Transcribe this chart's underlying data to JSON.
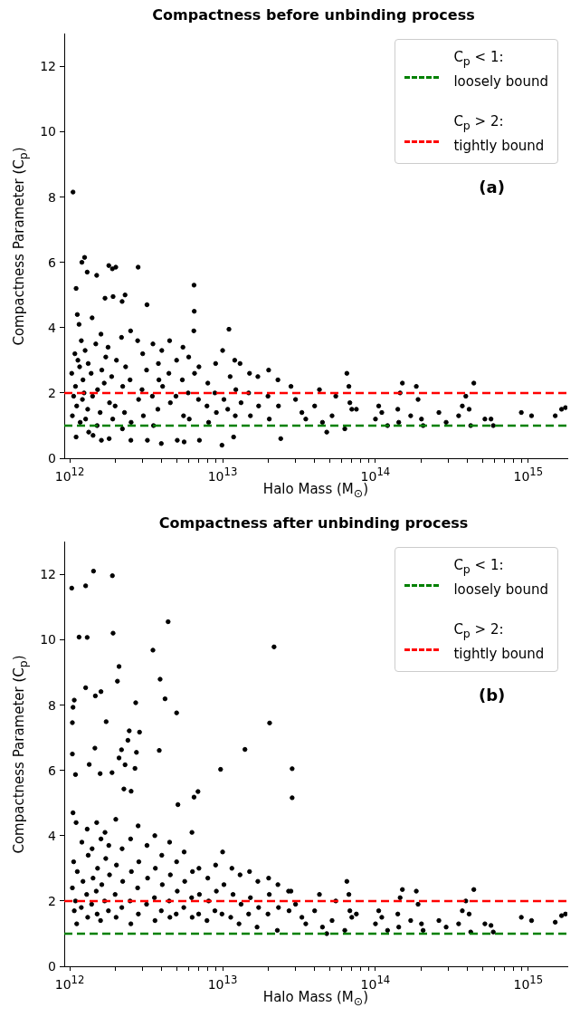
{
  "chart_data": [
    {
      "type": "scatter",
      "title": "Compactness before unbinding process",
      "xlabel": "Halo Mass (M$_{⊙}$)",
      "ylabel": "Compactness Parameter (C$_{p}$)",
      "color": "#000000",
      "marker": "circle",
      "log": "x",
      "legend": "top right",
      "xlim": [
        920000000000.0,
        1800000000000000.0
      ],
      "ylim": [
        0,
        13
      ],
      "xticks": [
        {
          "value": 1000000000000.0,
          "label": "10$^{12}$"
        },
        {
          "value": 2000000000000.0,
          "label": null
        },
        {
          "value": 3000000000000.0,
          "label": null
        },
        {
          "value": 4000000000000.0,
          "label": null
        },
        {
          "value": 5000000000000.0,
          "label": null
        },
        {
          "value": 6000000000000.0,
          "label": null
        },
        {
          "value": 7000000000000.0,
          "label": null
        },
        {
          "value": 8000000000000.0,
          "label": null
        },
        {
          "value": 9000000000000.0,
          "label": null
        },
        {
          "value": 10000000000000.0,
          "label": "10$^{13}$"
        },
        {
          "value": 20000000000000.0,
          "label": null
        },
        {
          "value": 30000000000000.0,
          "label": null
        },
        {
          "value": 40000000000000.0,
          "label": null
        },
        {
          "value": 50000000000000.0,
          "label": null
        },
        {
          "value": 60000000000000.0,
          "label": null
        },
        {
          "value": 70000000000000.0,
          "label": null
        },
        {
          "value": 80000000000000.0,
          "label": null
        },
        {
          "value": 90000000000000.0,
          "label": null
        },
        {
          "value": 100000000000000.0,
          "label": "10$^{14}$"
        },
        {
          "value": 200000000000000.0,
          "label": null
        },
        {
          "value": 300000000000000.0,
          "label": null
        },
        {
          "value": 400000000000000.0,
          "label": null
        },
        {
          "value": 500000000000000.0,
          "label": null
        },
        {
          "value": 600000000000000.0,
          "label": null
        },
        {
          "value": 700000000000000.0,
          "label": null
        },
        {
          "value": 800000000000000.0,
          "label": null
        },
        {
          "value": 900000000000000.0,
          "label": null
        },
        {
          "value": 1000000000000000.0,
          "label": "10$^{15}$"
        }
      ],
      "yticks": [
        0,
        2,
        4,
        6,
        8,
        10,
        12
      ],
      "ref_lines": [
        {
          "axis": "y",
          "value": 1,
          "label": "C$_{p}$ < 1:\nloosely bound",
          "color": "#008000",
          "line_style": "dashed"
        },
        {
          "axis": "y",
          "value": 2,
          "label": "C$_{p}$ > 2:\ntightly bound",
          "color": "#ff0000",
          "line_style": "dashed"
        }
      ],
      "annotations": [
        "(a)"
      ],
      "x": [
        1050000000000.0,
        1030000000000.0,
        1060000000000.0,
        1040000000000.0,
        1080000000000.0,
        1100000000000.0,
        1120000000000.0,
        1090000000000.0,
        1110000000000.0,
        1100000000000.0,
        1130000000000.0,
        1150000000000.0,
        1160000000000.0,
        1170000000000.0,
        1200000000000.0,
        1190000000000.0,
        1220000000000.0,
        1210000000000.0,
        1250000000000.0,
        1260000000000.0,
        1240000000000.0,
        1270000000000.0,
        1300000000000.0,
        1320000000000.0,
        1310000000000.0,
        1330000000000.0,
        1400000000000.0,
        1380000000000.0,
        1420000000000.0,
        1410000000000.0,
        1500000000000.0,
        1480000000000.0,
        1520000000000.0,
        1510000000000.0,
        1600000000000.0,
        1620000000000.0,
        1580000000000.0,
        1610000000000.0,
        1700000000000.0,
        1720000000000.0,
        1680000000000.0,
        1800000000000.0,
        1780000000000.0,
        1820000000000.0,
        1810000000000.0,
        1900000000000.0,
        1920000000000.0,
        1880000000000.0,
        1910000000000.0,
        2000000000000.0,
        2020000000000.0,
        1980000000000.0,
        2200000000000.0,
        2180000000000.0,
        2220000000000.0,
        2210000000000.0,
        2300000000000.0,
        2320000000000.0,
        2280000000000.0,
        2500000000000.0,
        2480000000000.0,
        2520000000000.0,
        2510000000000.0,
        2800000000000.0,
        2780000000000.0,
        2820000000000.0,
        3000000000000.0,
        2970000000000.0,
        3030000000000.0,
        3200000000000.0,
        3180000000000.0,
        3220000000000.0,
        3500000000000.0,
        3470000000000.0,
        3530000000000.0,
        3800000000000.0,
        3770000000000.0,
        3830000000000.0,
        4000000000000.0,
        4050000000000.0,
        3970000000000.0,
        4500000000000.0,
        4450000000000.0,
        4550000000000.0,
        5000000000000.0,
        4950000000000.0,
        5050000000000.0,
        5500000000000.0,
        5450000000000.0,
        5550000000000.0,
        5600000000000.0,
        6000000000000.0,
        5950000000000.0,
        6050000000000.0,
        6500000000000.0,
        6520000000000.0,
        6480000000000.0,
        6550000000000.0,
        7000000000000.0,
        6950000000000.0,
        7050000000000.0,
        8000000000000.0,
        7900000000000.0,
        8100000000000.0,
        9000000000000.0,
        8900000000000.0,
        9100000000000.0,
        10000000000000.0,
        10200000000000.0,
        9900000000000.0,
        11000000000000.0,
        11200000000000.0,
        10800000000000.0,
        12000000000000.0,
        12200000000000.0,
        11800000000000.0,
        12100000000000.0,
        13000000000000.0,
        13200000000000.0,
        15000000000000.0,
        14800000000000.0,
        15200000000000.0,
        17000000000000.0,
        17200000000000.0,
        20000000000000.0,
        19800000000000.0,
        20200000000000.0,
        23000000000000.0,
        23200000000000.0,
        24000000000000.0,
        28000000000000.0,
        30000000000000.0,
        33000000000000.0,
        35000000000000.0,
        40000000000000.0,
        43000000000000.0,
        45000000000000.0,
        48000000000000.0,
        52000000000000.0,
        55000000000000.0,
        65000000000000.0,
        67000000000000.0,
        68000000000000.0,
        70000000000000.0,
        63000000000000.0,
        75000000000000.0,
        100000000000000.0,
        105000000000000.0,
        110000000000000.0,
        120000000000000.0,
        140000000000000.0,
        145000000000000.0,
        150000000000000.0,
        142000000000000.0,
        170000000000000.0,
        185000000000000.0,
        190000000000000.0,
        200000000000000.0,
        205000000000000.0,
        260000000000000.0,
        290000000000000.0,
        350000000000000.0,
        370000000000000.0,
        390000000000000.0,
        410000000000000.0,
        420000000000000.0,
        440000000000000.0,
        520000000000000.0,
        570000000000000.0,
        590000000000000.0,
        900000000000000.0,
        1050000000000000.0,
        1500000000000000.0,
        1650000000000000.0,
        1750000000000000.0
      ],
      "values": [
        8.15,
        2.6,
        1.9,
        1.3,
        3.2,
        5.2,
        4.4,
        2.2,
        1.6,
        0.65,
        3.0,
        4.1,
        2.8,
        1.1,
        6.0,
        3.6,
        2.4,
        1.8,
        6.15,
        3.3,
        2.0,
        1.2,
        5.7,
        2.9,
        1.5,
        0.8,
        4.3,
        2.6,
        0.7,
        1.9,
        5.6,
        3.5,
        2.1,
        1.0,
        3.8,
        2.7,
        1.4,
        0.55,
        4.9,
        3.1,
        2.3,
        5.9,
        3.4,
        1.7,
        0.6,
        5.8,
        4.95,
        2.5,
        1.2,
        5.85,
        3.0,
        1.6,
        4.8,
        3.7,
        2.2,
        0.9,
        5.0,
        2.8,
        1.4,
        3.9,
        2.4,
        1.1,
        0.55,
        5.85,
        3.6,
        1.8,
        3.2,
        2.1,
        1.3,
        4.7,
        2.7,
        0.55,
        3.5,
        1.9,
        1.0,
        2.9,
        1.5,
        2.4,
        3.3,
        2.2,
        0.45,
        3.6,
        2.6,
        1.7,
        3.0,
        1.9,
        0.55,
        3.4,
        2.4,
        1.3,
        0.5,
        3.1,
        2.0,
        1.2,
        5.3,
        4.5,
        3.9,
        2.6,
        2.8,
        1.8,
        0.55,
        2.3,
        1.6,
        1.1,
        2.9,
        2.0,
        1.4,
        3.3,
        1.8,
        0.4,
        3.95,
        2.5,
        1.5,
        3.0,
        2.1,
        0.65,
        1.3,
        2.9,
        1.7,
        2.6,
        2.0,
        1.3,
        2.5,
        1.6,
        2.7,
        1.9,
        1.2,
        2.4,
        1.6,
        0.6,
        2.2,
        1.8,
        1.4,
        1.2,
        1.6,
        2.1,
        1.1,
        0.8,
        1.3,
        1.9,
        2.6,
        2.2,
        1.7,
        1.5,
        0.9,
        1.5,
        1.2,
        1.6,
        1.4,
        1.0,
        1.5,
        2.0,
        2.3,
        1.1,
        1.3,
        2.2,
        1.8,
        1.2,
        1.0,
        1.4,
        1.1,
        1.3,
        1.6,
        1.9,
        1.5,
        1.0,
        2.3,
        1.2,
        1.2,
        1.0,
        1.4,
        1.3,
        1.3,
        1.5,
        1.55
      ]
    },
    {
      "type": "scatter",
      "title": "Compactness after unbinding process",
      "xlabel": "Halo Mass (M$_{⊙}$)",
      "ylabel": "Compactness Parameter (C$_{p}$)",
      "color": "#000000",
      "marker": "circle",
      "log": "x",
      "legend": "top right",
      "xlim": [
        920000000000.0,
        1800000000000000.0
      ],
      "ylim": [
        0,
        13
      ],
      "xticks": [
        {
          "value": 1000000000000.0,
          "label": "10$^{12}$"
        },
        {
          "value": 2000000000000.0,
          "label": null
        },
        {
          "value": 3000000000000.0,
          "label": null
        },
        {
          "value": 4000000000000.0,
          "label": null
        },
        {
          "value": 5000000000000.0,
          "label": null
        },
        {
          "value": 6000000000000.0,
          "label": null
        },
        {
          "value": 7000000000000.0,
          "label": null
        },
        {
          "value": 8000000000000.0,
          "label": null
        },
        {
          "value": 9000000000000.0,
          "label": null
        },
        {
          "value": 10000000000000.0,
          "label": "10$^{13}$"
        },
        {
          "value": 20000000000000.0,
          "label": null
        },
        {
          "value": 30000000000000.0,
          "label": null
        },
        {
          "value": 40000000000000.0,
          "label": null
        },
        {
          "value": 50000000000000.0,
          "label": null
        },
        {
          "value": 60000000000000.0,
          "label": null
        },
        {
          "value": 70000000000000.0,
          "label": null
        },
        {
          "value": 80000000000000.0,
          "label": null
        },
        {
          "value": 90000000000000.0,
          "label": null
        },
        {
          "value": 100000000000000.0,
          "label": "10$^{14}$"
        },
        {
          "value": 200000000000000.0,
          "label": null
        },
        {
          "value": 300000000000000.0,
          "label": null
        },
        {
          "value": 400000000000000.0,
          "label": null
        },
        {
          "value": 500000000000000.0,
          "label": null
        },
        {
          "value": 600000000000000.0,
          "label": null
        },
        {
          "value": 700000000000000.0,
          "label": null
        },
        {
          "value": 800000000000000.0,
          "label": null
        },
        {
          "value": 900000000000000.0,
          "label": null
        },
        {
          "value": 1000000000000000.0,
          "label": "10$^{15}$"
        }
      ],
      "yticks": [
        0,
        2,
        4,
        6,
        8,
        10,
        12
      ],
      "ref_lines": [
        {
          "axis": "y",
          "value": 1,
          "label": "C$_{p}$ < 1:\nloosely bound",
          "color": "#008000",
          "line_style": "dashed"
        },
        {
          "axis": "y",
          "value": 2,
          "label": "C$_{p}$ > 2:\ntightly bound",
          "color": "#ff0000",
          "line_style": "dashed"
        }
      ],
      "annotations": [
        "(b)"
      ],
      "x": [
        1030000000000.0,
        1270000000000.0,
        1430000000000.0,
        1900000000000.0,
        1150000000000.0,
        1300000000000.0,
        1920000000000.0,
        4400000000000.0,
        3500000000000.0,
        21700000000000.0,
        2100000000000.0,
        2050000000000.0,
        1270000000000.0,
        1070000000000.0,
        1050000000000.0,
        1470000000000.0,
        1600000000000.0,
        3900000000000.0,
        4200000000000.0,
        2700000000000.0,
        5000000000000.0,
        20300000000000.0,
        1040000000000.0,
        1730000000000.0,
        2450000000000.0,
        2860000000000.0,
        2400000000000.0,
        2180000000000.0,
        2730000000000.0,
        3850000000000.0,
        14000000000000.0,
        1040000000000.0,
        1460000000000.0,
        2100000000000.0,
        2300000000000.0,
        2670000000000.0,
        9700000000000.0,
        28500000000000.0,
        28500000000000.0,
        1090000000000.0,
        1340000000000.0,
        1580000000000.0,
        1890000000000.0,
        2260000000000.0,
        2520000000000.0,
        6900000000000.0,
        6500000000000.0,
        5100000000000.0,
        1050000000000.0,
        1060000000000.0,
        1040000000000.0,
        1070000000000.0,
        1100000000000.0,
        1120000000000.0,
        1090000000000.0,
        1110000000000.0,
        1200000000000.0,
        1220000000000.0,
        1190000000000.0,
        1300000000000.0,
        1320000000000.0,
        1290000000000.0,
        1310000000000.0,
        1400000000000.0,
        1420000000000.0,
        1390000000000.0,
        1500000000000.0,
        1520000000000.0,
        1490000000000.0,
        1510000000000.0,
        1600000000000.0,
        1620000000000.0,
        1590000000000.0,
        1700000000000.0,
        1720000000000.0,
        1690000000000.0,
        1800000000000.0,
        1820000000000.0,
        1790000000000.0,
        2000000000000.0,
        2020000000000.0,
        1980000000000.0,
        2010000000000.0,
        2200000000000.0,
        2220000000000.0,
        2190000000000.0,
        2500000000000.0,
        2530000000000.0,
        2480000000000.0,
        2510000000000.0,
        2800000000000.0,
        2830000000000.0,
        2780000000000.0,
        2810000000000.0,
        3200000000000.0,
        3230000000000.0,
        3180000000000.0,
        3600000000000.0,
        3630000000000.0,
        3580000000000.0,
        3610000000000.0,
        4000000000000.0,
        4030000000000.0,
        3970000000000.0,
        4500000000000.0,
        4550000000000.0,
        4470000000000.0,
        4520000000000.0,
        5000000000000.0,
        5050000000000.0,
        4970000000000.0,
        5600000000000.0,
        5650000000000.0,
        5570000000000.0,
        6300000000000.0,
        6350000000000.0,
        6270000000000.0,
        6320000000000.0,
        7000000000000.0,
        7050000000000.0,
        6970000000000.0,
        8000000000000.0,
        8100000000000.0,
        7900000000000.0,
        9000000000000.0,
        9100000000000.0,
        8900000000000.0,
        10000000000000.0,
        10200000000000.0,
        9900000000000.0,
        11500000000000.0,
        11700000000000.0,
        11300000000000.0,
        13000000000000.0,
        13200000000000.0,
        12800000000000.0,
        15000000000000.0,
        15200000000000.0,
        14800000000000.0,
        17000000000000.0,
        17200000000000.0,
        16800000000000.0,
        20000000000000.0,
        20200000000000.0,
        19800000000000.0,
        23000000000000.0,
        23200000000000.0,
        22800000000000.0,
        27000000000000.0,
        27200000000000.0,
        28000000000000.0,
        30000000000000.0,
        33000000000000.0,
        35000000000000.0,
        40000000000000.0,
        43000000000000.0,
        45000000000000.0,
        48000000000000.0,
        52000000000000.0,
        55000000000000.0,
        65000000000000.0,
        67000000000000.0,
        68000000000000.0,
        70000000000000.0,
        63000000000000.0,
        75000000000000.0,
        100000000000000.0,
        105000000000000.0,
        110000000000000.0,
        120000000000000.0,
        140000000000000.0,
        145000000000000.0,
        150000000000000.0,
        142000000000000.0,
        170000000000000.0,
        185000000000000.0,
        190000000000000.0,
        200000000000000.0,
        205000000000000.0,
        260000000000000.0,
        290000000000000.0,
        350000000000000.0,
        370000000000000.0,
        390000000000000.0,
        410000000000000.0,
        420000000000000.0,
        440000000000000.0,
        520000000000000.0,
        570000000000000.0,
        590000000000000.0,
        900000000000000.0,
        1050000000000000.0,
        1500000000000000.0,
        1650000000000000.0,
        1750000000000000.0
      ],
      "values": [
        11.58,
        11.65,
        12.1,
        11.96,
        10.08,
        10.07,
        10.2,
        10.55,
        9.68,
        9.78,
        9.18,
        8.73,
        8.53,
        8.15,
        7.93,
        8.28,
        8.41,
        8.79,
        8.19,
        8.07,
        7.76,
        7.45,
        7.46,
        7.49,
        7.21,
        7.17,
        6.92,
        6.63,
        6.55,
        6.61,
        6.64,
        6.5,
        6.68,
        6.38,
        6.17,
        6.06,
        6.03,
        6.05,
        5.16,
        5.87,
        6.18,
        5.9,
        5.93,
        5.43,
        5.36,
        5.35,
        5.18,
        4.95,
        4.7,
        3.2,
        2.4,
        1.7,
        4.4,
        2.9,
        2.0,
        1.3,
        3.8,
        2.6,
        1.8,
        4.2,
        3.4,
        2.2,
        1.5,
        3.6,
        2.7,
        1.9,
        4.4,
        3.0,
        2.3,
        1.6,
        3.9,
        2.5,
        1.4,
        4.1,
        3.3,
        2.0,
        3.7,
        2.8,
        1.7,
        4.5,
        3.1,
        2.2,
        1.5,
        3.6,
        2.6,
        1.8,
        3.9,
        2.9,
        2.0,
        1.3,
        4.3,
        3.2,
        2.4,
        1.6,
        3.7,
        2.7,
        1.9,
        4.0,
        3.0,
        2.1,
        1.4,
        3.4,
        2.5,
        1.7,
        3.8,
        2.8,
        2.0,
        1.5,
        3.2,
        2.3,
        1.6,
        3.5,
        2.6,
        1.8,
        4.1,
        2.9,
        2.1,
        1.5,
        3.0,
        2.2,
        1.6,
        2.7,
        2.0,
        1.4,
        3.1,
        2.3,
        1.7,
        3.5,
        2.5,
        1.6,
        3.0,
        2.2,
        1.5,
        2.8,
        1.9,
        1.3,
        2.9,
        2.1,
        1.6,
        2.6,
        1.8,
        1.2,
        2.7,
        2.2,
        1.6,
        2.5,
        1.8,
        1.1,
        2.3,
        1.7,
        2.3,
        1.9,
        1.5,
        1.3,
        1.7,
        2.2,
        1.2,
        1.0,
        1.4,
        2.0,
        2.6,
        2.2,
        1.7,
        1.5,
        1.1,
        1.6,
        1.3,
        1.7,
        1.5,
        1.1,
        1.6,
        2.1,
        2.35,
        1.2,
        1.4,
        2.3,
        1.9,
        1.3,
        1.1,
        1.4,
        1.2,
        1.3,
        1.7,
        2.0,
        1.6,
        1.05,
        2.35,
        1.3,
        1.25,
        1.05,
        1.5,
        1.4,
        1.35,
        1.55,
        1.6
      ]
    }
  ]
}
